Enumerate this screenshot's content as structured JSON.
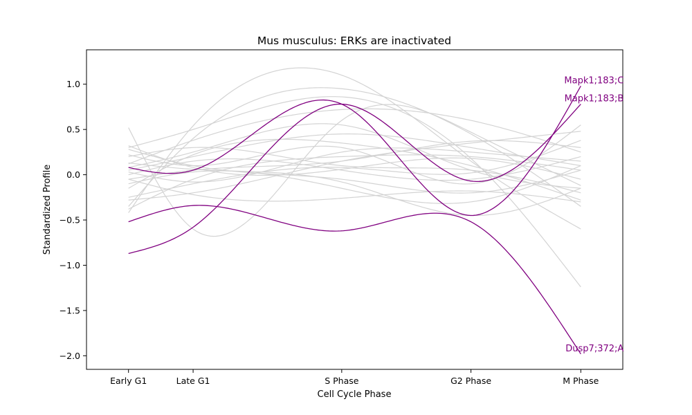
{
  "chart_data": {
    "type": "line",
    "title": "Mus musculus: ERKs are inactivated",
    "xlabel": "Cell Cycle Phase",
    "ylabel": "Standardized Profile",
    "x_categories": [
      {
        "label": "Early G1",
        "x": 0
      },
      {
        "label": "Late G1",
        "x": 1
      },
      {
        "label": "S Phase",
        "x": 3.3
      },
      {
        "label": "G2 Phase",
        "x": 5.3
      },
      {
        "label": "M Phase",
        "x": 7
      }
    ],
    "xlim": [
      -0.65,
      7.65
    ],
    "ylim": [
      -2.15,
      1.38
    ],
    "y_ticks": [
      1.0,
      0.5,
      0.0,
      -0.5,
      -1.0,
      -1.5,
      -2.0
    ],
    "y_tick_labels": [
      "1.0",
      "0.5",
      "0.0",
      "−0.5",
      "−1.0",
      "−1.5",
      "−2.0"
    ],
    "grid": false,
    "background_color": "#d3d3d3",
    "highlight_color": "#800080",
    "highlighted_series": [
      {
        "name": "Mapk1;183;C",
        "points": [
          [
            0,
            0.08
          ],
          [
            1,
            0.05
          ],
          [
            3.3,
            0.78
          ],
          [
            5.3,
            -0.45
          ],
          [
            7,
            0.98
          ]
        ]
      },
      {
        "name": "Mapk1;183;B",
        "points": [
          [
            0,
            -0.87
          ],
          [
            1,
            -0.58
          ],
          [
            3.3,
            0.78
          ],
          [
            5.3,
            -0.07
          ],
          [
            7,
            0.78
          ]
        ]
      },
      {
        "name": "Dusp7;372;A",
        "points": [
          [
            0,
            -0.52
          ],
          [
            1,
            -0.34
          ],
          [
            3.3,
            -0.62
          ],
          [
            5.3,
            -0.52
          ],
          [
            7,
            -1.98
          ]
        ]
      }
    ],
    "background_series": [
      {
        "points": [
          [
            0,
            0.52
          ],
          [
            1,
            -0.6
          ],
          [
            3.3,
            0.6
          ],
          [
            5.3,
            0.47
          ],
          [
            7,
            -0.12
          ]
        ]
      },
      {
        "points": [
          [
            0,
            0.3
          ],
          [
            1,
            0.5
          ],
          [
            3.3,
            0.86
          ],
          [
            5.3,
            0.18
          ],
          [
            7,
            -1.24
          ]
        ]
      },
      {
        "points": [
          [
            0,
            -0.42
          ],
          [
            1,
            0.54
          ],
          [
            3.3,
            1.1
          ],
          [
            5.3,
            0.15
          ],
          [
            7,
            -0.6
          ]
        ]
      },
      {
        "points": [
          [
            0,
            -0.35
          ],
          [
            1,
            0.4
          ],
          [
            3.3,
            0.95
          ],
          [
            5.3,
            0.45
          ],
          [
            7,
            -0.35
          ]
        ]
      },
      {
        "points": [
          [
            0,
            0.12
          ],
          [
            1,
            0.38
          ],
          [
            3.3,
            0.72
          ],
          [
            5.3,
            0.6
          ],
          [
            7,
            0.25
          ]
        ]
      },
      {
        "points": [
          [
            0,
            0.05
          ],
          [
            1,
            0.2
          ],
          [
            3.3,
            0.45
          ],
          [
            5.3,
            0.3
          ],
          [
            7,
            0.1
          ]
        ]
      },
      {
        "points": [
          [
            0,
            0.32
          ],
          [
            1,
            0.08
          ],
          [
            3.3,
            0.06
          ],
          [
            5.3,
            0.18
          ],
          [
            7,
            -0.05
          ]
        ]
      },
      {
        "points": [
          [
            0,
            0.22
          ],
          [
            1,
            0.1
          ],
          [
            3.3,
            0.3
          ],
          [
            5.3,
            -0.1
          ],
          [
            7,
            0.55
          ]
        ]
      },
      {
        "points": [
          [
            0,
            -0.05
          ],
          [
            1,
            0.05
          ],
          [
            3.3,
            0.15
          ],
          [
            5.3,
            0.37
          ],
          [
            7,
            0.3
          ]
        ]
      },
      {
        "points": [
          [
            0,
            -0.28
          ],
          [
            1,
            -0.2
          ],
          [
            3.3,
            0.15
          ],
          [
            5.3,
            0.35
          ],
          [
            7,
            0.48
          ]
        ]
      },
      {
        "points": [
          [
            0,
            0.0
          ],
          [
            1,
            0.15
          ],
          [
            3.3,
            0.05
          ],
          [
            5.3,
            -0.05
          ],
          [
            7,
            0.2
          ]
        ]
      },
      {
        "points": [
          [
            0,
            -0.05
          ],
          [
            1,
            -0.22
          ],
          [
            3.3,
            -0.26
          ],
          [
            5.3,
            -0.18
          ],
          [
            7,
            -0.3
          ]
        ]
      },
      {
        "points": [
          [
            0,
            0.28
          ],
          [
            1,
            0.1
          ],
          [
            3.3,
            -0.05
          ],
          [
            5.3,
            -0.2
          ],
          [
            7,
            0.05
          ]
        ]
      },
      {
        "points": [
          [
            0,
            0.13
          ],
          [
            1,
            0.06
          ],
          [
            3.3,
            -0.08
          ],
          [
            5.3,
            -0.45
          ],
          [
            7,
            -0.15
          ]
        ]
      },
      {
        "points": [
          [
            0,
            -0.15
          ],
          [
            1,
            0.22
          ],
          [
            3.3,
            0.35
          ],
          [
            5.3,
            0.1
          ],
          [
            7,
            -0.28
          ]
        ]
      },
      {
        "points": [
          [
            0,
            -0.38
          ],
          [
            1,
            -0.05
          ],
          [
            3.3,
            0.2
          ],
          [
            5.3,
            0.2
          ],
          [
            7,
            0.05
          ]
        ]
      },
      {
        "points": [
          [
            0,
            0.08
          ],
          [
            1,
            0.25
          ],
          [
            3.3,
            0.55
          ],
          [
            5.3,
            0.05
          ],
          [
            7,
            -0.15
          ]
        ]
      },
      {
        "points": [
          [
            0,
            -0.1
          ],
          [
            1,
            0.03
          ],
          [
            3.3,
            -0.15
          ],
          [
            5.3,
            -0.3
          ],
          [
            7,
            0.1
          ]
        ]
      },
      {
        "points": [
          [
            0,
            0.2
          ],
          [
            1,
            0.3
          ],
          [
            3.3,
            0.1
          ],
          [
            5.3,
            0.05
          ],
          [
            7,
            -0.2
          ]
        ]
      },
      {
        "points": [
          [
            0,
            -0.25
          ],
          [
            1,
            -0.1
          ],
          [
            3.3,
            0.08
          ],
          [
            5.3,
            0.02
          ],
          [
            7,
            0.38
          ]
        ]
      },
      {
        "points": [
          [
            0,
            0.03
          ],
          [
            1,
            -0.08
          ],
          [
            3.3,
            0.25
          ],
          [
            5.3,
            0.25
          ],
          [
            7,
            0.15
          ]
        ]
      }
    ]
  }
}
